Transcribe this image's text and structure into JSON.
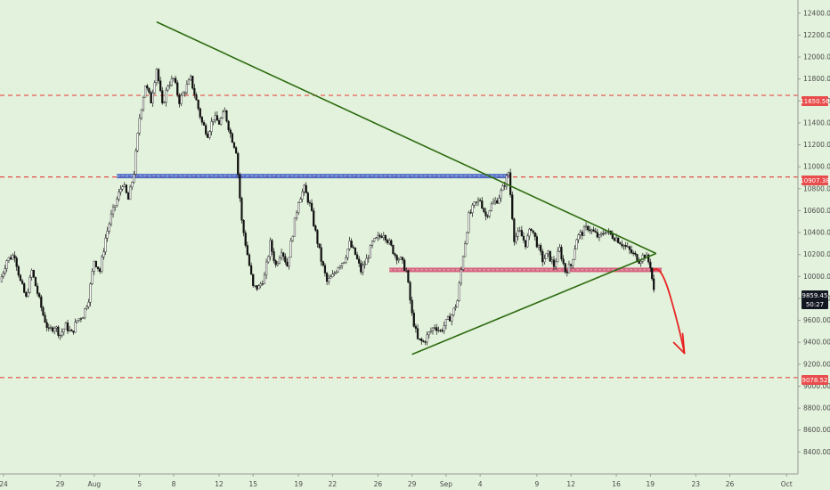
{
  "chart_data": {
    "type": "candlestick",
    "price_axis": {
      "ticks": [
        "8400.00",
        "8600.00",
        "8800.00",
        "9000.00",
        "9200.00",
        "9400.00",
        "9600.00",
        "9800.00",
        "10000.00",
        "10200.00",
        "10400.00",
        "10600.00",
        "10800.00",
        "11000.00",
        "11200.00",
        "11400.00",
        "11600.00",
        "11800.00",
        "12000.00",
        "12200.00",
        "12400.00"
      ],
      "ylim": [
        8200,
        12520
      ]
    },
    "time_axis": {
      "labels": [
        "24",
        "29",
        "Aug",
        "5",
        "8",
        "12",
        "15",
        "19",
        "22",
        "26",
        "29",
        "Sep",
        "4",
        "9",
        "12",
        "16",
        "19",
        "23",
        "26",
        "Oct"
      ],
      "positions": [
        0,
        5,
        8,
        12,
        15,
        19,
        22,
        26,
        29,
        33,
        36,
        39,
        42,
        47,
        50,
        54,
        57,
        61,
        64,
        69
      ],
      "xlim": [
        -0.3,
        70
      ]
    },
    "price_labels": {
      "level_1": "11650.56",
      "level_2": "10907.38",
      "level_3": "9078.52",
      "current": "9859.45",
      "countdown": "50:27"
    },
    "horizontal_levels": [
      11650.56,
      10907.38,
      9078.52
    ],
    "support_resistance_zones": [
      {
        "from_x": 10,
        "to_x": 44.5,
        "price": 10915,
        "color": "#3b5bc4"
      },
      {
        "from_x": 34,
        "to_x": 58,
        "price": 10060,
        "color": "#d24a6e"
      }
    ],
    "trendlines": [
      {
        "from": [
          13.5,
          12320
        ],
        "to": [
          57.5,
          10210
        ]
      },
      {
        "from": [
          36,
          9290
        ],
        "to": [
          57.5,
          10210
        ]
      }
    ],
    "projection_arrow": {
      "from": [
        57.3,
        10060
      ],
      "to": [
        60,
        9300
      ]
    },
    "price_path": [
      [
        -0.3,
        9950
      ],
      [
        0.3,
        10150
      ],
      [
        1,
        10200
      ],
      [
        1.5,
        9950
      ],
      [
        2,
        9800
      ],
      [
        2.5,
        10050
      ],
      [
        3,
        9850
      ],
      [
        3.5,
        9650
      ],
      [
        4,
        9500
      ],
      [
        4.5,
        9550
      ],
      [
        5,
        9470
      ],
      [
        5.5,
        9550
      ],
      [
        6,
        9480
      ],
      [
        6.5,
        9600
      ],
      [
        7,
        9650
      ],
      [
        7.5,
        9800
      ],
      [
        8,
        10150
      ],
      [
        8.5,
        10050
      ],
      [
        9,
        10350
      ],
      [
        9.5,
        10550
      ],
      [
        10,
        10700
      ],
      [
        10.5,
        10850
      ],
      [
        11,
        10700
      ],
      [
        11.5,
        10950
      ],
      [
        12,
        11450
      ],
      [
        12.5,
        11750
      ],
      [
        13,
        11600
      ],
      [
        13.5,
        11900
      ],
      [
        14,
        11550
      ],
      [
        14.5,
        11750
      ],
      [
        15,
        11800
      ],
      [
        15.5,
        11600
      ],
      [
        16,
        11700
      ],
      [
        16.5,
        11800
      ],
      [
        17,
        11600
      ],
      [
        17.5,
        11400
      ],
      [
        18,
        11300
      ],
      [
        18.5,
        11450
      ],
      [
        19,
        11400
      ],
      [
        19.5,
        11500
      ],
      [
        20,
        11300
      ],
      [
        20.5,
        11150
      ],
      [
        21,
        10500
      ],
      [
        21.5,
        10200
      ],
      [
        22,
        9900
      ],
      [
        22.5,
        9900
      ],
      [
        23,
        10000
      ],
      [
        23.5,
        10300
      ],
      [
        24,
        10100
      ],
      [
        24.5,
        10250
      ],
      [
        25,
        10100
      ],
      [
        25.5,
        10400
      ],
      [
        26,
        10700
      ],
      [
        26.5,
        10800
      ],
      [
        27,
        10650
      ],
      [
        27.5,
        10400
      ],
      [
        28,
        10150
      ],
      [
        28.5,
        9950
      ],
      [
        29,
        10000
      ],
      [
        29.5,
        10100
      ],
      [
        30,
        10150
      ],
      [
        30.5,
        10300
      ],
      [
        31,
        10200
      ],
      [
        31.5,
        10050
      ],
      [
        32,
        10150
      ],
      [
        32.5,
        10300
      ],
      [
        33,
        10350
      ],
      [
        33.5,
        10400
      ],
      [
        34,
        10300
      ],
      [
        34.5,
        10200
      ],
      [
        35,
        10150
      ],
      [
        35.5,
        10050
      ],
      [
        36,
        9650
      ],
      [
        36.5,
        9420
      ],
      [
        37,
        9400
      ],
      [
        37.5,
        9480
      ],
      [
        38,
        9550
      ],
      [
        38.5,
        9500
      ],
      [
        39,
        9580
      ],
      [
        39.5,
        9650
      ],
      [
        40,
        9780
      ],
      [
        40.5,
        10200
      ],
      [
        41,
        10550
      ],
      [
        41.5,
        10650
      ],
      [
        42,
        10700
      ],
      [
        42.5,
        10550
      ],
      [
        43,
        10650
      ],
      [
        43.5,
        10700
      ],
      [
        44,
        10800
      ],
      [
        44.5,
        10950
      ],
      [
        45,
        10350
      ],
      [
        45.5,
        10400
      ],
      [
        46,
        10300
      ],
      [
        46.5,
        10450
      ],
      [
        47,
        10300
      ],
      [
        47.5,
        10150
      ],
      [
        48,
        10200
      ],
      [
        48.5,
        10100
      ],
      [
        49,
        10250
      ],
      [
        49.5,
        10050
      ],
      [
        50,
        10100
      ],
      [
        50.5,
        10350
      ],
      [
        51,
        10400
      ],
      [
        51.5,
        10450
      ],
      [
        52,
        10400
      ],
      [
        52.5,
        10350
      ],
      [
        53,
        10420
      ],
      [
        53.5,
        10380
      ],
      [
        54,
        10350
      ],
      [
        54.5,
        10300
      ],
      [
        55,
        10250
      ],
      [
        55.5,
        10200
      ],
      [
        56,
        10150
      ],
      [
        56.5,
        10200
      ],
      [
        57,
        10100
      ],
      [
        57.3,
        9859.45
      ]
    ],
    "colors": {
      "background": "#e3f2dc",
      "trendline": "#2d6b10",
      "level_line": "#e84c4c",
      "arrow": "#e82323",
      "label_bg": "#e84c4c",
      "current_bg": "#131722"
    }
  }
}
